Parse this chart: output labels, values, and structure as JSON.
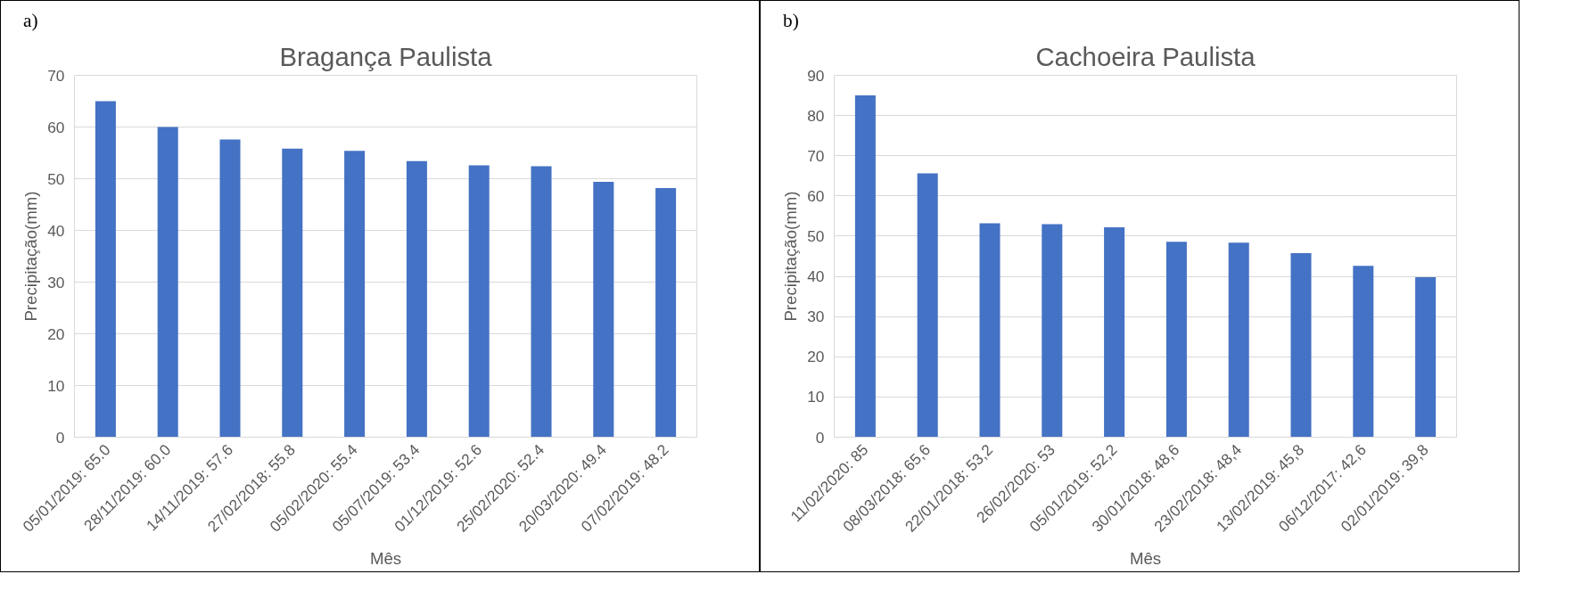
{
  "chart_data": [
    {
      "type": "bar",
      "title": "Bragança Paulista",
      "xlabel": "Mês",
      "ylabel": "Precipitação(mm)",
      "annotations": [
        "a)"
      ],
      "categories": [
        "05/01/2019: 65.0",
        "28/11/2019: 60.0",
        "14/11/2019: 57.6",
        "27/02/2018: 55.8",
        "05/02/2020: 55.4",
        "05/07/2019: 53.4",
        "01/12/2019: 52.6",
        "25/02/2020: 52.4",
        "20/03/2020: 49.4",
        "07/02/2019: 48.2"
      ],
      "values": [
        65.0,
        60.0,
        57.6,
        55.8,
        55.4,
        53.4,
        52.6,
        52.4,
        49.4,
        48.2
      ],
      "color": "#4472c4",
      "ylim": [
        0,
        70
      ],
      "yticks": [
        0,
        10,
        20,
        30,
        40,
        50,
        60,
        70
      ],
      "grid": "y"
    },
    {
      "type": "bar",
      "title": "Cachoeira Paulista",
      "xlabel": "Mês",
      "ylabel": "Precipitação(mm)",
      "annotations": [
        "b)"
      ],
      "categories": [
        "11/02/2020: 85",
        "08/03/2018: 65,6",
        "22/01/2018: 53,2",
        "26/02/2020: 53",
        "05/01/2019: 52,2",
        "30/01/2018: 48,6",
        "23/02/2018: 48,4",
        "13/02/2019: 45,8",
        "06/12/2017: 42,6",
        "02/01/2019: 39,8"
      ],
      "values": [
        85,
        65.6,
        53.2,
        53,
        52.2,
        48.6,
        48.4,
        45.8,
        42.6,
        39.8
      ],
      "color": "#4472c4",
      "ylim": [
        0,
        90
      ],
      "yticks": [
        0,
        10,
        20,
        30,
        40,
        50,
        60,
        70,
        80,
        90
      ],
      "grid": "y"
    }
  ]
}
